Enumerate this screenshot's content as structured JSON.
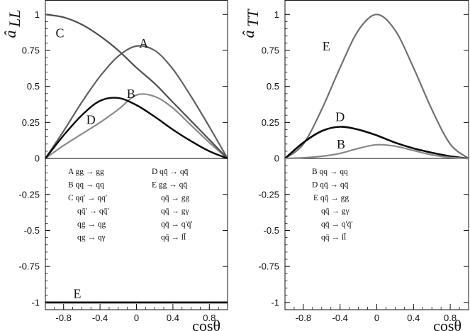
{
  "chart_data": [
    {
      "type": "line",
      "ylabel": "â_LL",
      "ylabel_main": "â",
      "ylabel_sub": "LL",
      "xlabel": "cosθ",
      "xlim": [
        -1,
        1
      ],
      "ylim": [
        -1.05,
        1.1
      ],
      "xticks": [
        -0.8,
        -0.4,
        0,
        0.4,
        0.8
      ],
      "xtick_labels": [
        "-0.8",
        "-0.4",
        "0",
        "0.4",
        "0.8"
      ],
      "yticks": [
        1,
        0.75,
        0.5,
        0.25,
        0,
        -0.25,
        -0.5,
        -0.75,
        -1
      ],
      "ytick_labels": [
        "1",
        "0.75",
        "0.5",
        "0.25",
        "0",
        "-0.25",
        "-0.5",
        "-0.75",
        "-1"
      ],
      "grid": false,
      "series": [
        {
          "name": "A",
          "color": "#606060",
          "x": [
            -1,
            -0.8,
            -0.6,
            -0.4,
            -0.2,
            0,
            0.2,
            0.4,
            0.6,
            0.8,
            1
          ],
          "y": [
            0,
            0.19,
            0.39,
            0.57,
            0.71,
            0.78,
            0.75,
            0.62,
            0.43,
            0.22,
            0
          ]
        },
        {
          "name": "B",
          "color": "#8a8a8a",
          "x": [
            -1,
            -0.8,
            -0.6,
            -0.4,
            -0.2,
            0,
            0.2,
            0.4,
            0.6,
            0.8,
            1
          ],
          "y": [
            0,
            0.09,
            0.17,
            0.25,
            0.34,
            0.44,
            0.43,
            0.35,
            0.23,
            0.11,
            0
          ]
        },
        {
          "name": "C",
          "color": "#505050",
          "x": [
            -1,
            -0.8,
            -0.6,
            -0.4,
            -0.2,
            0,
            0.2,
            0.4,
            0.6,
            0.8,
            1
          ],
          "y": [
            1,
            0.98,
            0.93,
            0.85,
            0.75,
            0.63,
            0.52,
            0.39,
            0.26,
            0.13,
            0
          ]
        },
        {
          "name": "D",
          "color": "#0a0a0a",
          "x": [
            -1,
            -0.8,
            -0.6,
            -0.4,
            -0.2,
            0,
            0.2,
            0.4,
            0.6,
            0.8,
            1
          ],
          "y": [
            0,
            0.16,
            0.3,
            0.4,
            0.42,
            0.37,
            0.29,
            0.2,
            0.12,
            0.05,
            0
          ]
        },
        {
          "name": "E",
          "color": "#0a0a0a",
          "x": [
            -1,
            1
          ],
          "y": [
            -1,
            -1
          ]
        }
      ],
      "curve_labels": [
        {
          "text": "C",
          "x": -0.84,
          "y": 0.87
        },
        {
          "text": "A",
          "x": 0.08,
          "y": 0.8
        },
        {
          "text": "B",
          "x": -0.06,
          "y": 0.45
        },
        {
          "text": "D",
          "x": -0.5,
          "y": 0.27
        },
        {
          "text": "E",
          "x": -0.65,
          "y": -0.94
        }
      ],
      "legend": {
        "position": "center-left",
        "columns": [
          [
            "A gg → gg",
            "B qq → qq",
            "C qq' → qq'",
            "qq̄' → qq̄'",
            "qg → qg",
            "qg → qγ"
          ],
          [
            "D qq̄ → qq̄",
            "E gg → qq̄",
            "qq̄ → gg",
            "qq̄ → gγ",
            "qq̄ → q'q̄'",
            "qq̄ → ll̄"
          ]
        ]
      }
    },
    {
      "type": "line",
      "ylabel": "â_TT",
      "ylabel_main": "â",
      "ylabel_sub": "TT",
      "xlabel": "cosθ",
      "xlim": [
        -1,
        1
      ],
      "ylim": [
        -1.05,
        1.1
      ],
      "xticks": [
        -0.8,
        -0.4,
        0,
        0.4,
        0.8
      ],
      "xtick_labels": [
        "-0.8",
        "-0.4",
        "0",
        "0.4",
        "0.8"
      ],
      "yticks": [
        1,
        0.75,
        0.5,
        0.25,
        0,
        -0.25,
        -0.5,
        -0.75,
        -1
      ],
      "ytick_labels": [
        "1",
        "0.75",
        "0.5",
        "0.25",
        "0",
        "-0.25",
        "-0.5",
        "-0.75",
        "-1"
      ],
      "grid": false,
      "series": [
        {
          "name": "E",
          "color": "#707070",
          "x": [
            -1,
            -0.8,
            -0.6,
            -0.4,
            -0.2,
            0,
            0.2,
            0.4,
            0.6,
            0.8,
            1
          ],
          "y": [
            0,
            0.1,
            0.34,
            0.63,
            0.89,
            1,
            0.89,
            0.63,
            0.34,
            0.1,
            0
          ]
        },
        {
          "name": "D",
          "color": "#0a0a0a",
          "x": [
            -1,
            -0.8,
            -0.6,
            -0.4,
            -0.2,
            0,
            0.2,
            0.4,
            0.6,
            0.8,
            1
          ],
          "y": [
            0,
            0.11,
            0.19,
            0.22,
            0.2,
            0.16,
            0.11,
            0.07,
            0.04,
            0.015,
            0
          ]
        },
        {
          "name": "B",
          "color": "#888888",
          "x": [
            -1,
            -0.8,
            -0.6,
            -0.4,
            -0.2,
            0,
            0.2,
            0.4,
            0.6,
            0.8,
            1
          ],
          "y": [
            0,
            0.005,
            0.015,
            0.035,
            0.07,
            0.095,
            0.085,
            0.055,
            0.025,
            0.007,
            0
          ]
        }
      ],
      "curve_labels": [
        {
          "text": "E",
          "x": -0.55,
          "y": 0.78
        },
        {
          "text": "D",
          "x": -0.4,
          "y": 0.29
        },
        {
          "text": "B",
          "x": -0.39,
          "y": 0.1
        }
      ],
      "legend": {
        "position": "center-left",
        "columns": [
          [
            "B qq → qq",
            "D qq̄ → qq̄",
            "E qq̄ → gg",
            "qq̄ → gγ",
            "qq̄ → q'q̄'",
            "qq̄ → ll̄"
          ]
        ]
      }
    }
  ]
}
